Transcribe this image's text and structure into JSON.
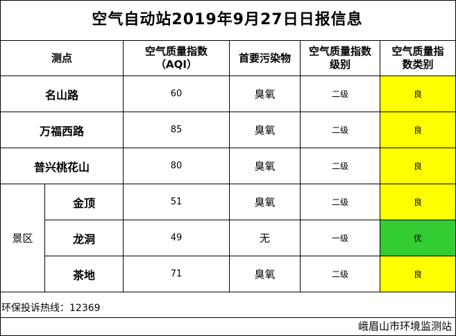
{
  "title": "空气自动站2019年9月27日日报信息",
  "headers": {
    "station": "测点",
    "aqi_line1": "空气质量指数",
    "aqi_line2": "（AQI）",
    "pollutant": "首要污染物",
    "level_line1": "空气质量指数",
    "level_line2": "级别",
    "category_line1": "空气质量指",
    "category_line2": "数类别"
  },
  "group_label": "景区",
  "rows": [
    {
      "station": "名山路",
      "aqi": "60",
      "pollutant": "臭氧",
      "level": "二级",
      "category": "良",
      "color": "#ffff00"
    },
    {
      "station": "万福西路",
      "aqi": "85",
      "pollutant": "臭氧",
      "level": "二级",
      "category": "良",
      "color": "#ffff00"
    },
    {
      "station": "普兴桃花山",
      "aqi": "80",
      "pollutant": "臭氧",
      "level": "二级",
      "category": "良",
      "color": "#ffff00"
    },
    {
      "station": "金顶",
      "aqi": "51",
      "pollutant": "臭氧",
      "level": "二级",
      "category": "良",
      "color": "#ffff00"
    },
    {
      "station": "龙洞",
      "aqi": "49",
      "pollutant": "无",
      "level": "一级",
      "category": "优",
      "color": "#33cc33"
    },
    {
      "station": "茶地",
      "aqi": "71",
      "pollutant": "臭氧",
      "level": "二级",
      "category": "良",
      "color": "#ffff00"
    }
  ],
  "hotline": "环保投诉热线：12369",
  "publisher": "峨眉山市环境监测站"
}
